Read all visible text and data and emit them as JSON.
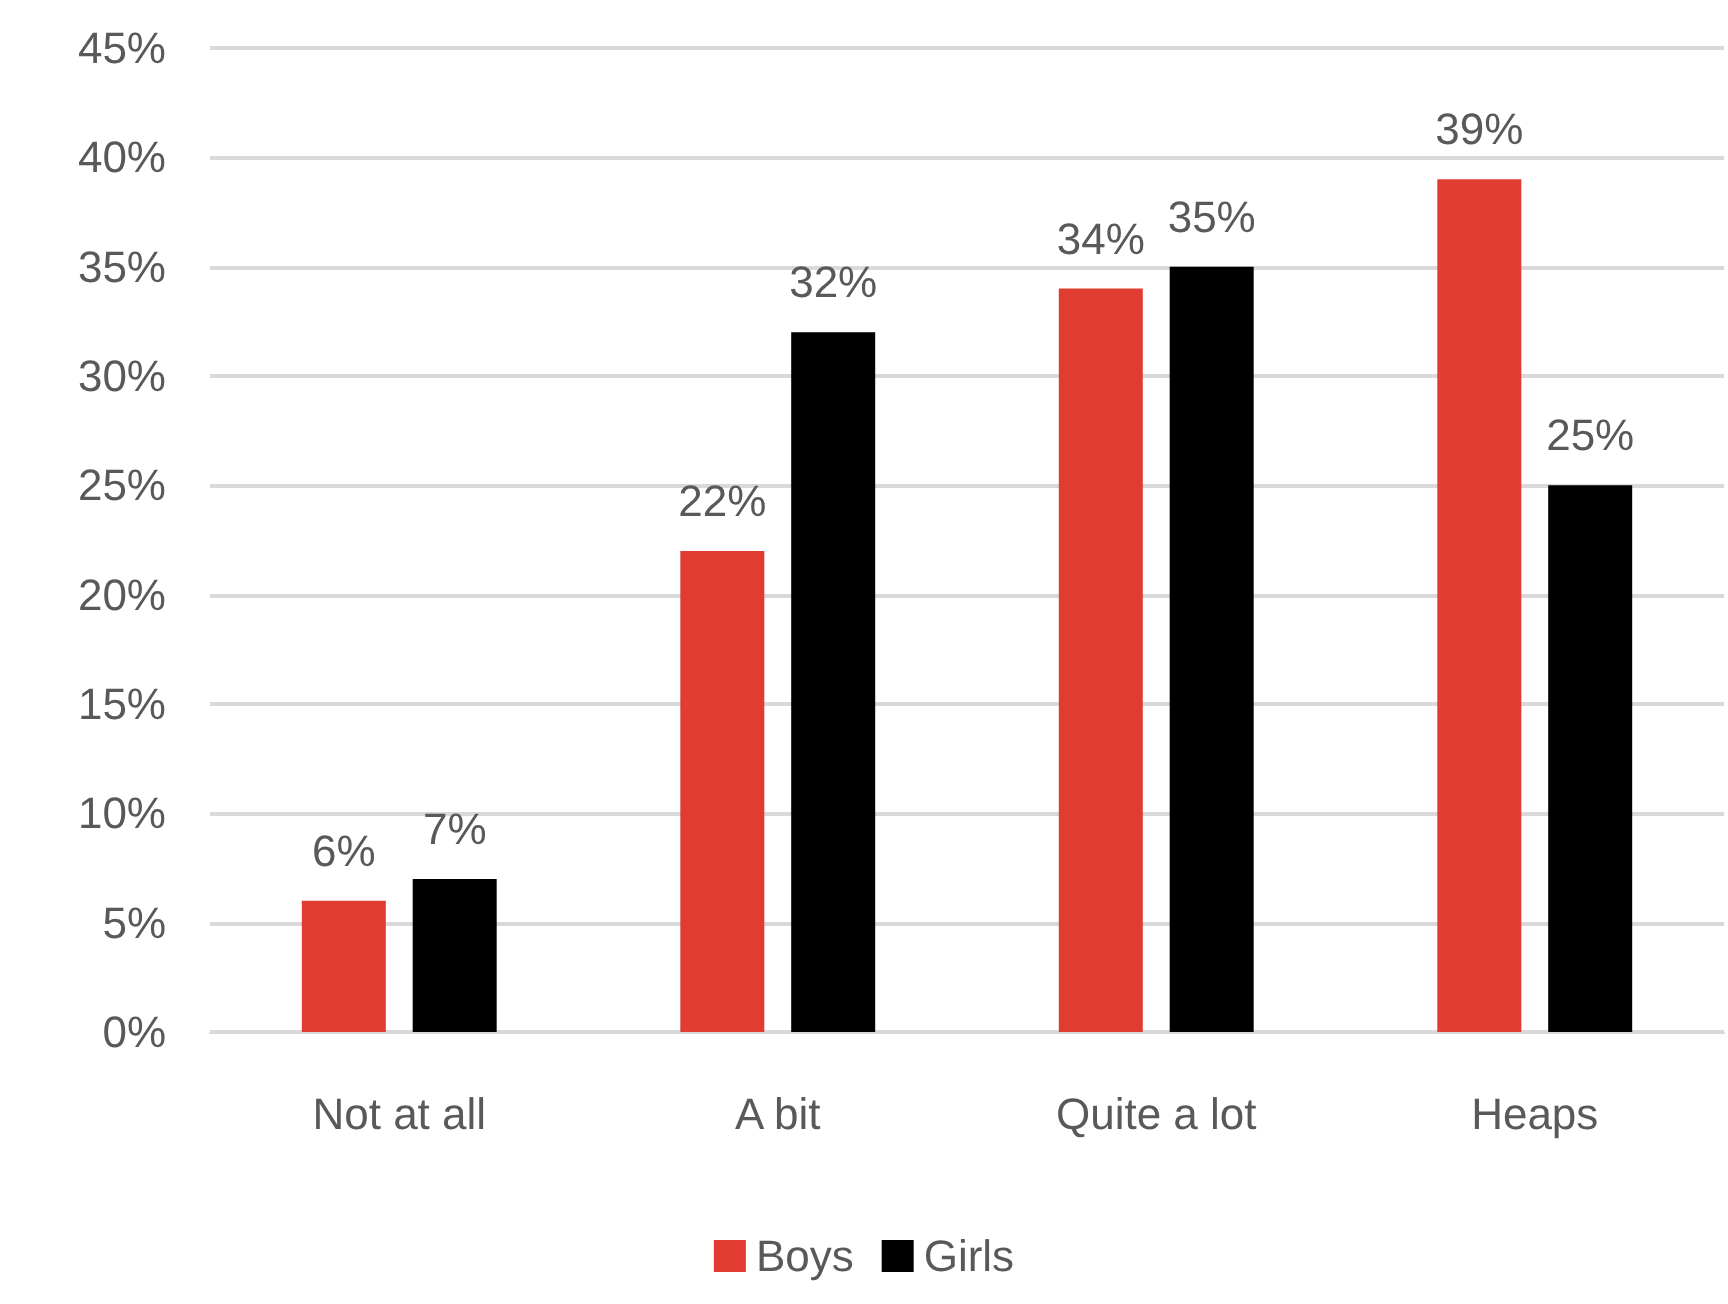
{
  "chart_data": {
    "type": "bar",
    "categories": [
      "Not at all",
      "A bit",
      "Quite a lot",
      "Heaps"
    ],
    "series": [
      {
        "name": "Boys",
        "color": "#e03c31",
        "values": [
          6,
          22,
          34,
          39
        ],
        "value_labels": [
          "6%",
          "22%",
          "34%",
          "39%"
        ]
      },
      {
        "name": "Girls",
        "color": "#000000",
        "values": [
          7,
          32,
          35,
          25
        ],
        "value_labels": [
          "7%",
          "32%",
          "35%",
          "25%"
        ]
      }
    ],
    "ylim": [
      0,
      45
    ],
    "yticks": [
      {
        "value": 0,
        "label": "0%"
      },
      {
        "value": 5,
        "label": "5%"
      },
      {
        "value": 10,
        "label": "10%"
      },
      {
        "value": 15,
        "label": "15%"
      },
      {
        "value": 20,
        "label": "20%"
      },
      {
        "value": 25,
        "label": "25%"
      },
      {
        "value": 30,
        "label": "30%"
      },
      {
        "value": 35,
        "label": "35%"
      },
      {
        "value": 40,
        "label": "40%"
      },
      {
        "value": 45,
        "label": "45%"
      }
    ],
    "grid": "y",
    "legend": "bottom"
  }
}
